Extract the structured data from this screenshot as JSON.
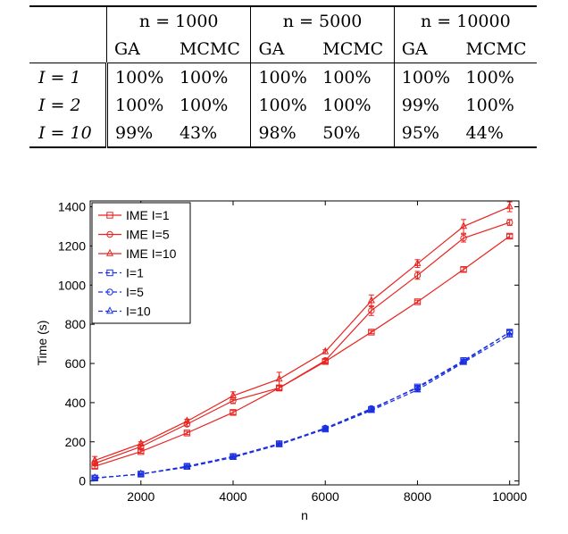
{
  "table": {
    "header_top": [
      "n = 1000",
      "n = 5000",
      "n = 10000"
    ],
    "header_sub": [
      "GA",
      "MCMC",
      "GA",
      "MCMC",
      "GA",
      "MCMC"
    ],
    "rows": [
      {
        "label": "I = 1",
        "values": [
          "100%",
          "100%",
          "100%",
          "100%",
          "100%",
          "100%"
        ]
      },
      {
        "label": "I = 2",
        "values": [
          "100%",
          "100%",
          "100%",
          "100%",
          "99%",
          "100%"
        ]
      },
      {
        "label": "I = 10",
        "values": [
          "99%",
          "43%",
          "98%",
          "50%",
          "95%",
          "44%"
        ]
      }
    ]
  },
  "chart_data": {
    "type": "line",
    "xlabel": "n",
    "ylabel": "Time (s)",
    "xlim": [
      1000,
      10000
    ],
    "ylim": [
      0,
      1400
    ],
    "xticks": [
      2000,
      4000,
      6000,
      8000,
      10000
    ],
    "yticks": [
      0,
      200,
      400,
      600,
      800,
      1000,
      1200,
      1400
    ],
    "grid": false,
    "legend_position": "top-left",
    "x": [
      1000,
      2000,
      3000,
      4000,
      5000,
      6000,
      7000,
      8000,
      9000,
      10000
    ],
    "series": [
      {
        "name": "IME I=1",
        "color": "#e8231f",
        "marker": "square",
        "dash": false,
        "values": [
          75,
          150,
          245,
          350,
          475,
          610,
          760,
          915,
          1080,
          1250
        ],
        "errors": [
          10,
          8,
          8,
          10,
          10,
          10,
          8,
          8,
          12,
          10
        ]
      },
      {
        "name": "IME I=5",
        "color": "#e8231f",
        "marker": "circle",
        "dash": false,
        "values": [
          90,
          175,
          290,
          410,
          475,
          615,
          870,
          1050,
          1240,
          1320
        ],
        "errors": [
          10,
          8,
          10,
          15,
          15,
          10,
          25,
          20,
          20,
          15
        ]
      },
      {
        "name": "IME I=10",
        "color": "#e8231f",
        "marker": "triangle",
        "dash": false,
        "values": [
          105,
          190,
          305,
          435,
          520,
          660,
          920,
          1110,
          1300,
          1400
        ],
        "errors": [
          20,
          10,
          10,
          20,
          35,
          10,
          30,
          20,
          35,
          25
        ]
      },
      {
        "name": "I=1",
        "color": "#1a2fe0",
        "marker": "square",
        "dash": true,
        "values": [
          15,
          35,
          75,
          125,
          190,
          265,
          365,
          480,
          615,
          760
        ],
        "errors": [
          4,
          4,
          4,
          5,
          5,
          5,
          8,
          8,
          8,
          8
        ]
      },
      {
        "name": "I=5",
        "color": "#1a2fe0",
        "marker": "circle",
        "dash": true,
        "values": [
          15,
          35,
          75,
          125,
          190,
          270,
          370,
          475,
          610,
          760
        ],
        "errors": [
          4,
          4,
          4,
          5,
          5,
          5,
          8,
          8,
          8,
          8
        ]
      },
      {
        "name": "I=10",
        "color": "#1a2fe0",
        "marker": "triangle",
        "dash": true,
        "values": [
          15,
          35,
          70,
          120,
          185,
          265,
          360,
          465,
          605,
          745
        ],
        "errors": [
          4,
          4,
          4,
          5,
          5,
          5,
          8,
          8,
          8,
          8
        ]
      }
    ]
  }
}
